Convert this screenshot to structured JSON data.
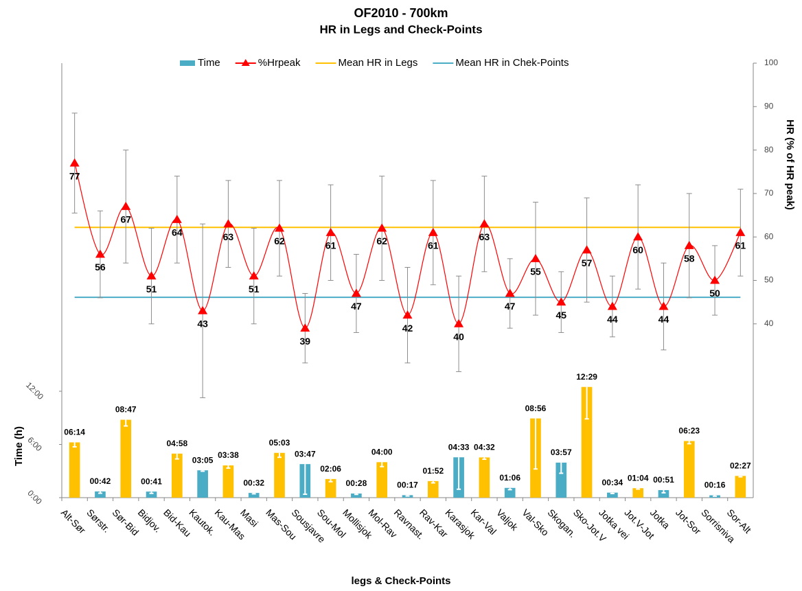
{
  "chart_data": {
    "type": "combo",
    "title": "OF2010 - 700km",
    "subtitle": "HR in Legs and Check-Points",
    "x_label": "legs & Check-Points",
    "y_label": "Time (h)",
    "y2_label": "HR (% of HR peak)",
    "categories": [
      "Alt-Sør",
      "Sørstr.",
      "Sør-Bid",
      "Bidjov.",
      "Bid-Kau",
      "Kautok.",
      "Kau-Mas",
      "Masi",
      "Mas-Sou",
      "Sousjavre",
      "Sou-Mol",
      "Mollisjok",
      "Mol-Rav",
      "Ravnast.",
      "Rav-Kar",
      "Karasjok",
      "Kar-Val",
      "Valjok",
      "Val-Sko",
      "Skogan.",
      "Sko-Jot.V",
      "Jotka vei",
      "Jot.V-Jot",
      "Jotka",
      "Jot-Sor",
      "Sorrisniva",
      "Sor-Alt"
    ],
    "ylim": [
      0,
      49
    ],
    "yticks": [
      {
        "value": 0,
        "label": "0:00"
      },
      {
        "value": 6,
        "label": "6:00"
      },
      {
        "value": 12,
        "label": "12:00"
      }
    ],
    "y2lim": [
      0,
      100
    ],
    "y2ticks": [
      40,
      50,
      60,
      70,
      80,
      90,
      100
    ],
    "series": [
      {
        "name": "Time",
        "type": "bar",
        "color": "#4bacc6",
        "colors": [
          "#ffc000",
          "#4bacc6",
          "#ffc000",
          "#4bacc6",
          "#ffc000",
          "#4bacc6",
          "#ffc000",
          "#4bacc6",
          "#ffc000",
          "#4bacc6",
          "#ffc000",
          "#4bacc6",
          "#ffc000",
          "#4bacc6",
          "#ffc000",
          "#4bacc6",
          "#ffc000",
          "#4bacc6",
          "#ffc000",
          "#4bacc6",
          "#ffc000",
          "#4bacc6",
          "#ffc000",
          "#4bacc6",
          "#ffc000",
          "#4bacc6",
          "#ffc000"
        ],
        "values": [
          6.2333,
          0.7,
          8.7833,
          0.6833,
          4.9667,
          3.0833,
          3.6333,
          0.5333,
          5.05,
          3.7833,
          2.1,
          0.4667,
          4.0,
          0.2833,
          1.8667,
          4.55,
          4.5333,
          1.1,
          8.9333,
          3.95,
          12.4833,
          0.5667,
          1.0667,
          0.85,
          6.3833,
          0.2667,
          2.45
        ],
        "value_labels": [
          "06:14",
          "00:42",
          "08:47",
          "00:41",
          "04:58",
          "03:05",
          "03:38",
          "00:32",
          "05:03",
          "03:47",
          "02:06",
          "00:28",
          "04:00",
          "00:17",
          "01:52",
          "04:33",
          "04:32",
          "01:06",
          "08:56",
          "03:57",
          "12:29",
          "00:34",
          "01:04",
          "00:51",
          "06:23",
          "00:16",
          "02:27"
        ],
        "errors": [
          0.5,
          0.2,
          0.7,
          0.2,
          0.6,
          0.1,
          0.3,
          0.1,
          0.5,
          3.4,
          0.3,
          0.1,
          0.5,
          0.1,
          0.2,
          3.6,
          0.2,
          0.2,
          5.7,
          1.2,
          3.6,
          0.1,
          0.1,
          0.3,
          0.3,
          0.1,
          0.1
        ]
      },
      {
        "name": "%Hrpeak",
        "type": "line",
        "color": "#ff0000",
        "axis": "y2",
        "values": [
          77,
          56,
          67,
          51,
          64,
          43,
          63,
          51,
          62,
          39,
          61,
          47,
          62,
          42,
          61,
          40,
          63,
          47,
          55,
          45,
          57,
          44,
          60,
          44,
          58,
          50,
          61
        ],
        "errors": [
          11.5,
          10,
          13,
          11,
          10,
          20,
          10,
          11,
          11,
          8,
          11,
          9,
          12,
          11,
          12,
          11,
          11,
          8,
          13,
          7,
          12,
          7,
          12,
          10,
          12,
          8,
          10
        ]
      },
      {
        "name": "Mean HR in Legs",
        "type": "hline",
        "color": "#ffc000",
        "axis": "y2",
        "value": 62.2
      },
      {
        "name": "Mean HR in Chek-Points",
        "type": "hline",
        "color": "#4bacc6",
        "axis": "y2",
        "value": 46.1
      }
    ]
  }
}
